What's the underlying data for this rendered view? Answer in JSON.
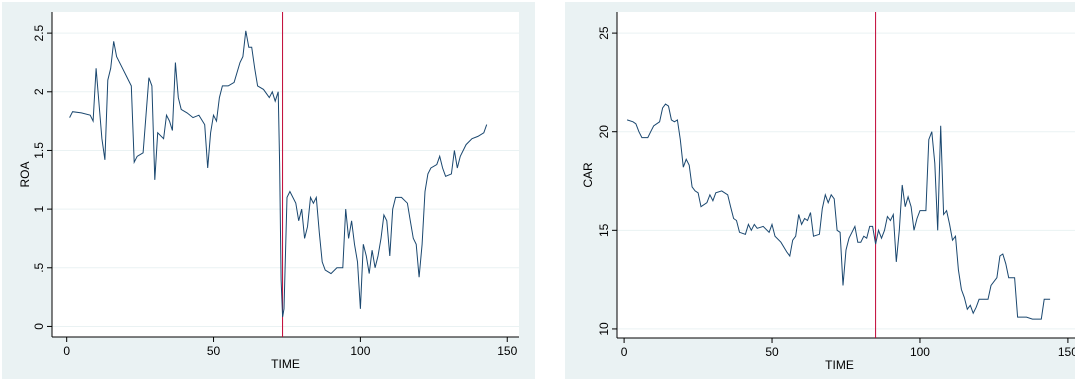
{
  "chart_data": [
    {
      "type": "line",
      "x_label": "TIME",
      "y_label": "ROA",
      "color": "#1a476f",
      "grid": true,
      "xline": {
        "value": 73.5,
        "color": "#c10534"
      },
      "xlim": [
        -5,
        154
      ],
      "ylim": [
        -0.09,
        2.68
      ],
      "xticks": [
        0,
        50,
        100,
        150
      ],
      "yticks": [
        0,
        {
          "value": 0.5,
          "label": ".5"
        },
        1,
        1.5,
        2,
        2.5
      ],
      "x": [
        1,
        2,
        5,
        8,
        9,
        10,
        11,
        12,
        13,
        14,
        15,
        16,
        17,
        19,
        21,
        22,
        23,
        24,
        26,
        27,
        28,
        29,
        30,
        31,
        33,
        34,
        35,
        36,
        37,
        38,
        39,
        41,
        43,
        45,
        47,
        48,
        49,
        50,
        51,
        52,
        53,
        55,
        57,
        59,
        60,
        61,
        62,
        63,
        64,
        65,
        67,
        69,
        70,
        71,
        72,
        72.5,
        73,
        73.5,
        74,
        75,
        76,
        78,
        79,
        80,
        81,
        82,
        83,
        84,
        85,
        86,
        87,
        88,
        90,
        92,
        94,
        95,
        96,
        97,
        98,
        99,
        100,
        101,
        102,
        103,
        104,
        105,
        106,
        107,
        108,
        109,
        110,
        111,
        112,
        114,
        116,
        117,
        118,
        119,
        120,
        121,
        122,
        123,
        124,
        126,
        127,
        128,
        129,
        131,
        132,
        133,
        134,
        136,
        138,
        140,
        142,
        143
      ],
      "values": [
        1.78,
        1.83,
        1.82,
        1.8,
        1.75,
        2.2,
        1.9,
        1.6,
        1.42,
        2.1,
        2.2,
        2.43,
        2.3,
        2.2,
        2.1,
        2.05,
        1.4,
        1.45,
        1.48,
        1.8,
        2.12,
        2.05,
        1.25,
        1.65,
        1.6,
        1.8,
        1.75,
        1.67,
        2.25,
        1.95,
        1.85,
        1.82,
        1.78,
        1.8,
        1.72,
        1.35,
        1.65,
        1.8,
        1.75,
        1.95,
        2.05,
        2.05,
        2.08,
        2.25,
        2.3,
        2.52,
        2.38,
        2.38,
        2.2,
        2.05,
        2.02,
        1.95,
        2.0,
        1.92,
        2.0,
        1.4,
        0.4,
        0.08,
        0.15,
        1.1,
        1.15,
        1.05,
        0.9,
        1.0,
        0.75,
        0.85,
        1.1,
        1.05,
        1.1,
        0.8,
        0.55,
        0.48,
        0.45,
        0.5,
        0.5,
        1.0,
        0.75,
        0.9,
        0.7,
        0.55,
        0.15,
        0.7,
        0.6,
        0.45,
        0.65,
        0.5,
        0.6,
        0.75,
        0.95,
        0.9,
        0.6,
        1.0,
        1.1,
        1.1,
        1.05,
        0.9,
        0.75,
        0.7,
        0.42,
        0.7,
        1.15,
        1.3,
        1.35,
        1.38,
        1.45,
        1.35,
        1.28,
        1.3,
        1.5,
        1.35,
        1.45,
        1.55,
        1.6,
        1.62,
        1.65,
        1.72
      ]
    },
    {
      "type": "line",
      "x_label": "TIME",
      "y_label": "CAR",
      "color": "#1a476f",
      "grid": true,
      "xline": {
        "value": 85,
        "color": "#c10534"
      },
      "xlim": [
        -2.4,
        152.4
      ],
      "ylim": [
        9.54,
        26.07
      ],
      "xticks": [
        0,
        50,
        100,
        150
      ],
      "yticks": [
        10,
        15,
        20,
        25
      ],
      "x": [
        1,
        3,
        4,
        5,
        6,
        8,
        9,
        10,
        12,
        13,
        14,
        15,
        16,
        17,
        18,
        19,
        20,
        21,
        22,
        23,
        24,
        25,
        26,
        28,
        29,
        30,
        31,
        33,
        35,
        36,
        37,
        38,
        39,
        41,
        42,
        43,
        44,
        45,
        47,
        49,
        50,
        51,
        53,
        55,
        56,
        57,
        58,
        59,
        60,
        61,
        62,
        63,
        64,
        66,
        67,
        68,
        69,
        70,
        71,
        72,
        73,
        74,
        75,
        76,
        78,
        79,
        80,
        81,
        82,
        83,
        84,
        85,
        86,
        87,
        88,
        89,
        90,
        91,
        92,
        93,
        94,
        95,
        96,
        97,
        98,
        99,
        100,
        102,
        103,
        104,
        105,
        106,
        107,
        108,
        109,
        110,
        111,
        112,
        113,
        114,
        115,
        116,
        117,
        118,
        119,
        120,
        123,
        124,
        126,
        127,
        128,
        129,
        130,
        132,
        133,
        136,
        138,
        141,
        142,
        144
      ],
      "values": [
        20.6,
        20.5,
        20.4,
        20.0,
        19.7,
        19.7,
        20.0,
        20.3,
        20.5,
        21.2,
        21.4,
        21.3,
        20.6,
        20.5,
        20.6,
        19.6,
        18.2,
        18.6,
        18.3,
        17.2,
        17.0,
        16.9,
        16.2,
        16.4,
        16.8,
        16.5,
        16.9,
        17.0,
        16.8,
        16.2,
        15.6,
        15.5,
        14.9,
        14.8,
        15.3,
        15.0,
        15.3,
        15.1,
        15.2,
        14.9,
        15.3,
        14.7,
        14.4,
        13.9,
        13.7,
        14.5,
        14.7,
        15.8,
        15.3,
        15.6,
        15.5,
        15.9,
        14.7,
        14.8,
        16.1,
        16.8,
        16.4,
        16.8,
        16.6,
        15.0,
        14.9,
        12.2,
        14.0,
        14.6,
        15.2,
        14.4,
        14.4,
        14.7,
        14.6,
        15.2,
        15.2,
        14.3,
        15.0,
        14.6,
        15.0,
        15.7,
        15.5,
        15.8,
        13.4,
        15.0,
        17.3,
        16.2,
        16.7,
        16.2,
        15.0,
        15.6,
        16.0,
        16.0,
        19.6,
        20.0,
        18.4,
        15.0,
        20.3,
        15.8,
        16.0,
        15.3,
        14.5,
        14.7,
        13.0,
        12.0,
        11.6,
        11.0,
        11.2,
        10.8,
        11.1,
        11.5,
        11.5,
        12.2,
        12.6,
        13.7,
        13.8,
        13.3,
        12.6,
        12.6,
        10.6,
        10.6,
        10.5,
        10.5,
        11.5,
        11.5
      ]
    }
  ]
}
